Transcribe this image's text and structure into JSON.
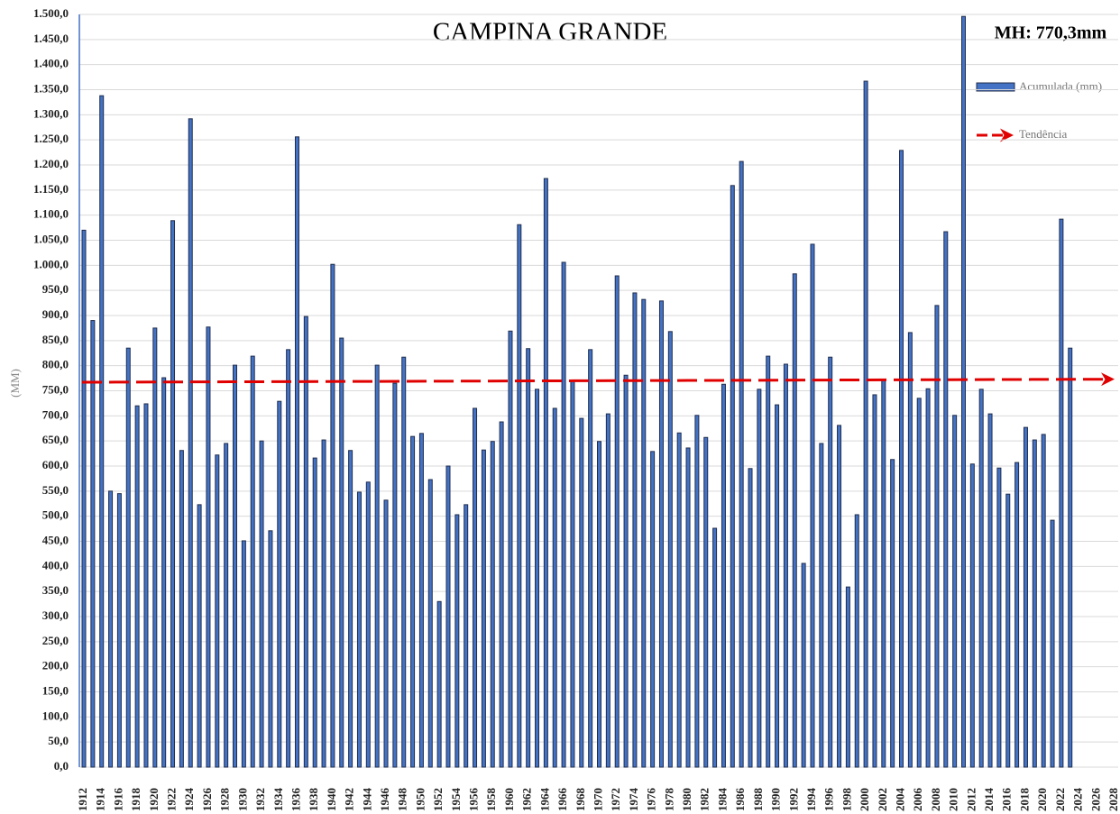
{
  "chart_data": {
    "type": "bar",
    "title": "CAMPINA GRANDE",
    "annotation": "MH: 770,3mm",
    "y_label": "(MM)",
    "categories": [
      "1912",
      null,
      "1914",
      null,
      "1916",
      null,
      "1918",
      null,
      "1920",
      null,
      "1922",
      null,
      "1924",
      null,
      "1926",
      null,
      "1928",
      null,
      "1930",
      null,
      "1932",
      null,
      "1934",
      null,
      "1936",
      null,
      "1938",
      null,
      "1940",
      null,
      "1942",
      null,
      "1944",
      null,
      "1946",
      null,
      "1948",
      null,
      "1950",
      null,
      "1952",
      null,
      "1954",
      null,
      "1956",
      null,
      "1958",
      null,
      "1960",
      null,
      "1962",
      null,
      "1964",
      null,
      "1966",
      null,
      "1968",
      null,
      "1970",
      null,
      "1972",
      null,
      "1974",
      null,
      "1976",
      null,
      "1978",
      null,
      "1980",
      null,
      "1982",
      null,
      "1984",
      null,
      "1986",
      null,
      "1988",
      null,
      "1990",
      null,
      "1992",
      null,
      "1994",
      null,
      "1996",
      null,
      "1998",
      null,
      "2000",
      null,
      "2002",
      null,
      "2004",
      null,
      "2006",
      null,
      "2008",
      null,
      "2010",
      null,
      "2012",
      null,
      "2014",
      null,
      "2016",
      null,
      "2018",
      null,
      "2020",
      null,
      "2022",
      null,
      "2024",
      null,
      "2026",
      null,
      "2028"
    ],
    "series": [
      {
        "name": "Acumulada (mm)",
        "color": "#4472c4",
        "values": [
          1070,
          890,
          1338,
          550,
          545,
          835,
          720,
          724,
          875,
          776,
          1089,
          631,
          1292,
          523,
          877,
          622,
          645,
          801,
          451,
          819,
          650,
          471,
          729,
          832,
          1256,
          898,
          616,
          652,
          1002,
          855,
          631,
          548,
          568,
          801,
          532,
          765,
          817,
          659,
          665,
          573,
          330,
          600,
          503,
          523,
          715,
          632,
          649,
          688,
          869,
          1081,
          834,
          753,
          1173,
          715,
          1006,
          769,
          695,
          832,
          649,
          704,
          979,
          781,
          945,
          932,
          629,
          929,
          868,
          666,
          636,
          701,
          657,
          476,
          763,
          1159,
          1207,
          595,
          753,
          819,
          722,
          803,
          983,
          406,
          1042,
          645,
          817,
          681,
          359,
          503,
          1367,
          742,
          771,
          613,
          1229,
          866,
          735,
          754,
          920,
          1067,
          701,
          1496,
          604,
          753,
          704,
          596,
          544,
          607,
          677,
          652,
          663,
          492,
          1092,
          835,
          null,
          null,
          null,
          null,
          null
        ]
      }
    ],
    "trend": {
      "name": "Tendência",
      "color": "#e00000",
      "values": [
        767,
        773
      ]
    },
    "ylim": [
      0,
      1500
    ],
    "yticks": [
      {
        "value": 0,
        "label": "0,0"
      },
      {
        "value": 50,
        "label": "50,0"
      },
      {
        "value": 100,
        "label": "100,0"
      },
      {
        "value": 150,
        "label": "150,0"
      },
      {
        "value": 200,
        "label": "200,0"
      },
      {
        "value": 250,
        "label": "250,0"
      },
      {
        "value": 300,
        "label": "300,0"
      },
      {
        "value": 350,
        "label": "350,0"
      },
      {
        "value": 400,
        "label": "400,0"
      },
      {
        "value": 450,
        "label": "450,0"
      },
      {
        "value": 500,
        "label": "500,0"
      },
      {
        "value": 550,
        "label": "550,0"
      },
      {
        "value": 600,
        "label": "600,0"
      },
      {
        "value": 650,
        "label": "650,0"
      },
      {
        "value": 700,
        "label": "700,0"
      },
      {
        "value": 750,
        "label": "750,0"
      },
      {
        "value": 800,
        "label": "800,0"
      },
      {
        "value": 850,
        "label": "850,0"
      },
      {
        "value": 900,
        "label": "900,0"
      },
      {
        "value": 950,
        "label": "950,0"
      },
      {
        "value": 1000,
        "label": "1.000,0"
      },
      {
        "value": 1050,
        "label": "1.050,0"
      },
      {
        "value": 1100,
        "label": "1.100,0"
      },
      {
        "value": 1150,
        "label": "1.150,0"
      },
      {
        "value": 1200,
        "label": "1.200,0"
      },
      {
        "value": 1250,
        "label": "1.250,0"
      },
      {
        "value": 1300,
        "label": "1.300,0"
      },
      {
        "value": 1350,
        "label": "1.350,0"
      },
      {
        "value": 1400,
        "label": "1.400,0"
      },
      {
        "value": 1450,
        "label": "1.450,0"
      },
      {
        "value": 1500,
        "label": "1.500,0"
      }
    ],
    "grid": true
  }
}
